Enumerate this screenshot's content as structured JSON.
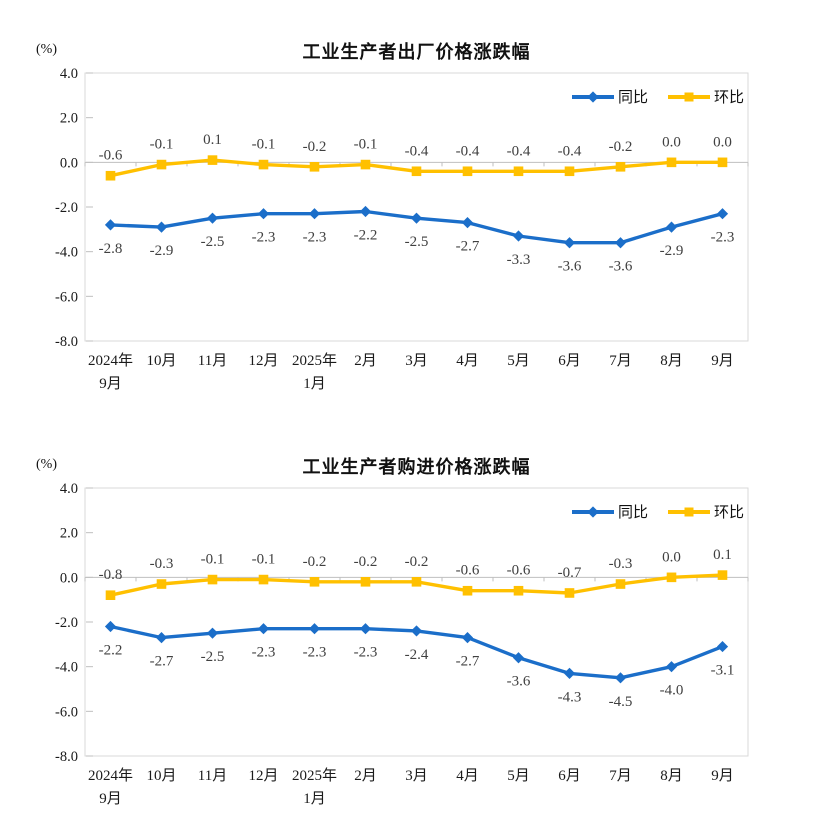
{
  "chart_data": [
    {
      "type": "line",
      "title": "工业生产者出厂价格涨跌幅",
      "unit_label": "(%)",
      "categories": [
        "2024年9月",
        "10月",
        "11月",
        "12月",
        "2025年1月",
        "2月",
        "3月",
        "4月",
        "5月",
        "6月",
        "7月",
        "8月",
        "9月"
      ],
      "category_lines": [
        [
          "2024年",
          "9月"
        ],
        [
          "10月"
        ],
        [
          "11月"
        ],
        [
          "12月"
        ],
        [
          "2025年",
          "1月"
        ],
        [
          "2月"
        ],
        [
          "3月"
        ],
        [
          "4月"
        ],
        [
          "5月"
        ],
        [
          "6月"
        ],
        [
          "7月"
        ],
        [
          "8月"
        ],
        [
          "9月"
        ]
      ],
      "ylim": [
        -8,
        4
      ],
      "ytick_step": 2,
      "ytick_labels": [
        "4.0",
        "2.0",
        "0.0",
        "-2.0",
        "-4.0",
        "-6.0",
        "-8.0"
      ],
      "grid": false,
      "legend_position": "top-right-inside",
      "series": [
        {
          "name": "同比",
          "marker": "diamond",
          "color": "#1b6ec9",
          "label_position": "below",
          "values": [
            -2.8,
            -2.9,
            -2.5,
            -2.3,
            -2.3,
            -2.2,
            -2.5,
            -2.7,
            -3.3,
            -3.6,
            -3.6,
            -2.9,
            -2.3
          ]
        },
        {
          "name": "环比",
          "marker": "square",
          "color": "#ffc000",
          "label_position": "above",
          "values": [
            -0.6,
            -0.1,
            0.1,
            -0.1,
            -0.2,
            -0.1,
            -0.4,
            -0.4,
            -0.4,
            -0.4,
            -0.2,
            0.0,
            0.0
          ]
        }
      ]
    },
    {
      "type": "line",
      "title": "工业生产者购进价格涨跌幅",
      "unit_label": "(%)",
      "categories": [
        "2024年9月",
        "10月",
        "11月",
        "12月",
        "2025年1月",
        "2月",
        "3月",
        "4月",
        "5月",
        "6月",
        "7月",
        "8月",
        "9月"
      ],
      "category_lines": [
        [
          "2024年",
          "9月"
        ],
        [
          "10月"
        ],
        [
          "11月"
        ],
        [
          "12月"
        ],
        [
          "2025年",
          "1月"
        ],
        [
          "2月"
        ],
        [
          "3月"
        ],
        [
          "4月"
        ],
        [
          "5月"
        ],
        [
          "6月"
        ],
        [
          "7月"
        ],
        [
          "8月"
        ],
        [
          "9月"
        ]
      ],
      "ylim": [
        -8,
        4
      ],
      "ytick_step": 2,
      "ytick_labels": [
        "4.0",
        "2.0",
        "0.0",
        "-2.0",
        "-4.0",
        "-6.0",
        "-8.0"
      ],
      "grid": false,
      "legend_position": "top-right-inside",
      "series": [
        {
          "name": "同比",
          "marker": "diamond",
          "color": "#1b6ec9",
          "label_position": "below",
          "values": [
            -2.2,
            -2.7,
            -2.5,
            -2.3,
            -2.3,
            -2.3,
            -2.4,
            -2.7,
            -3.6,
            -4.3,
            -4.5,
            -4.0,
            -3.1
          ]
        },
        {
          "name": "环比",
          "marker": "square",
          "color": "#ffc000",
          "label_position": "above",
          "values": [
            -0.8,
            -0.3,
            -0.1,
            -0.1,
            -0.2,
            -0.2,
            -0.2,
            -0.6,
            -0.6,
            -0.7,
            -0.3,
            0.0,
            0.1
          ]
        }
      ]
    }
  ],
  "style": {
    "axis_line_color": "#bfbfbf",
    "plot_border_color": "#d9d9d9",
    "label_color": "#404040",
    "axis_text_color": "#1a1a1a"
  }
}
